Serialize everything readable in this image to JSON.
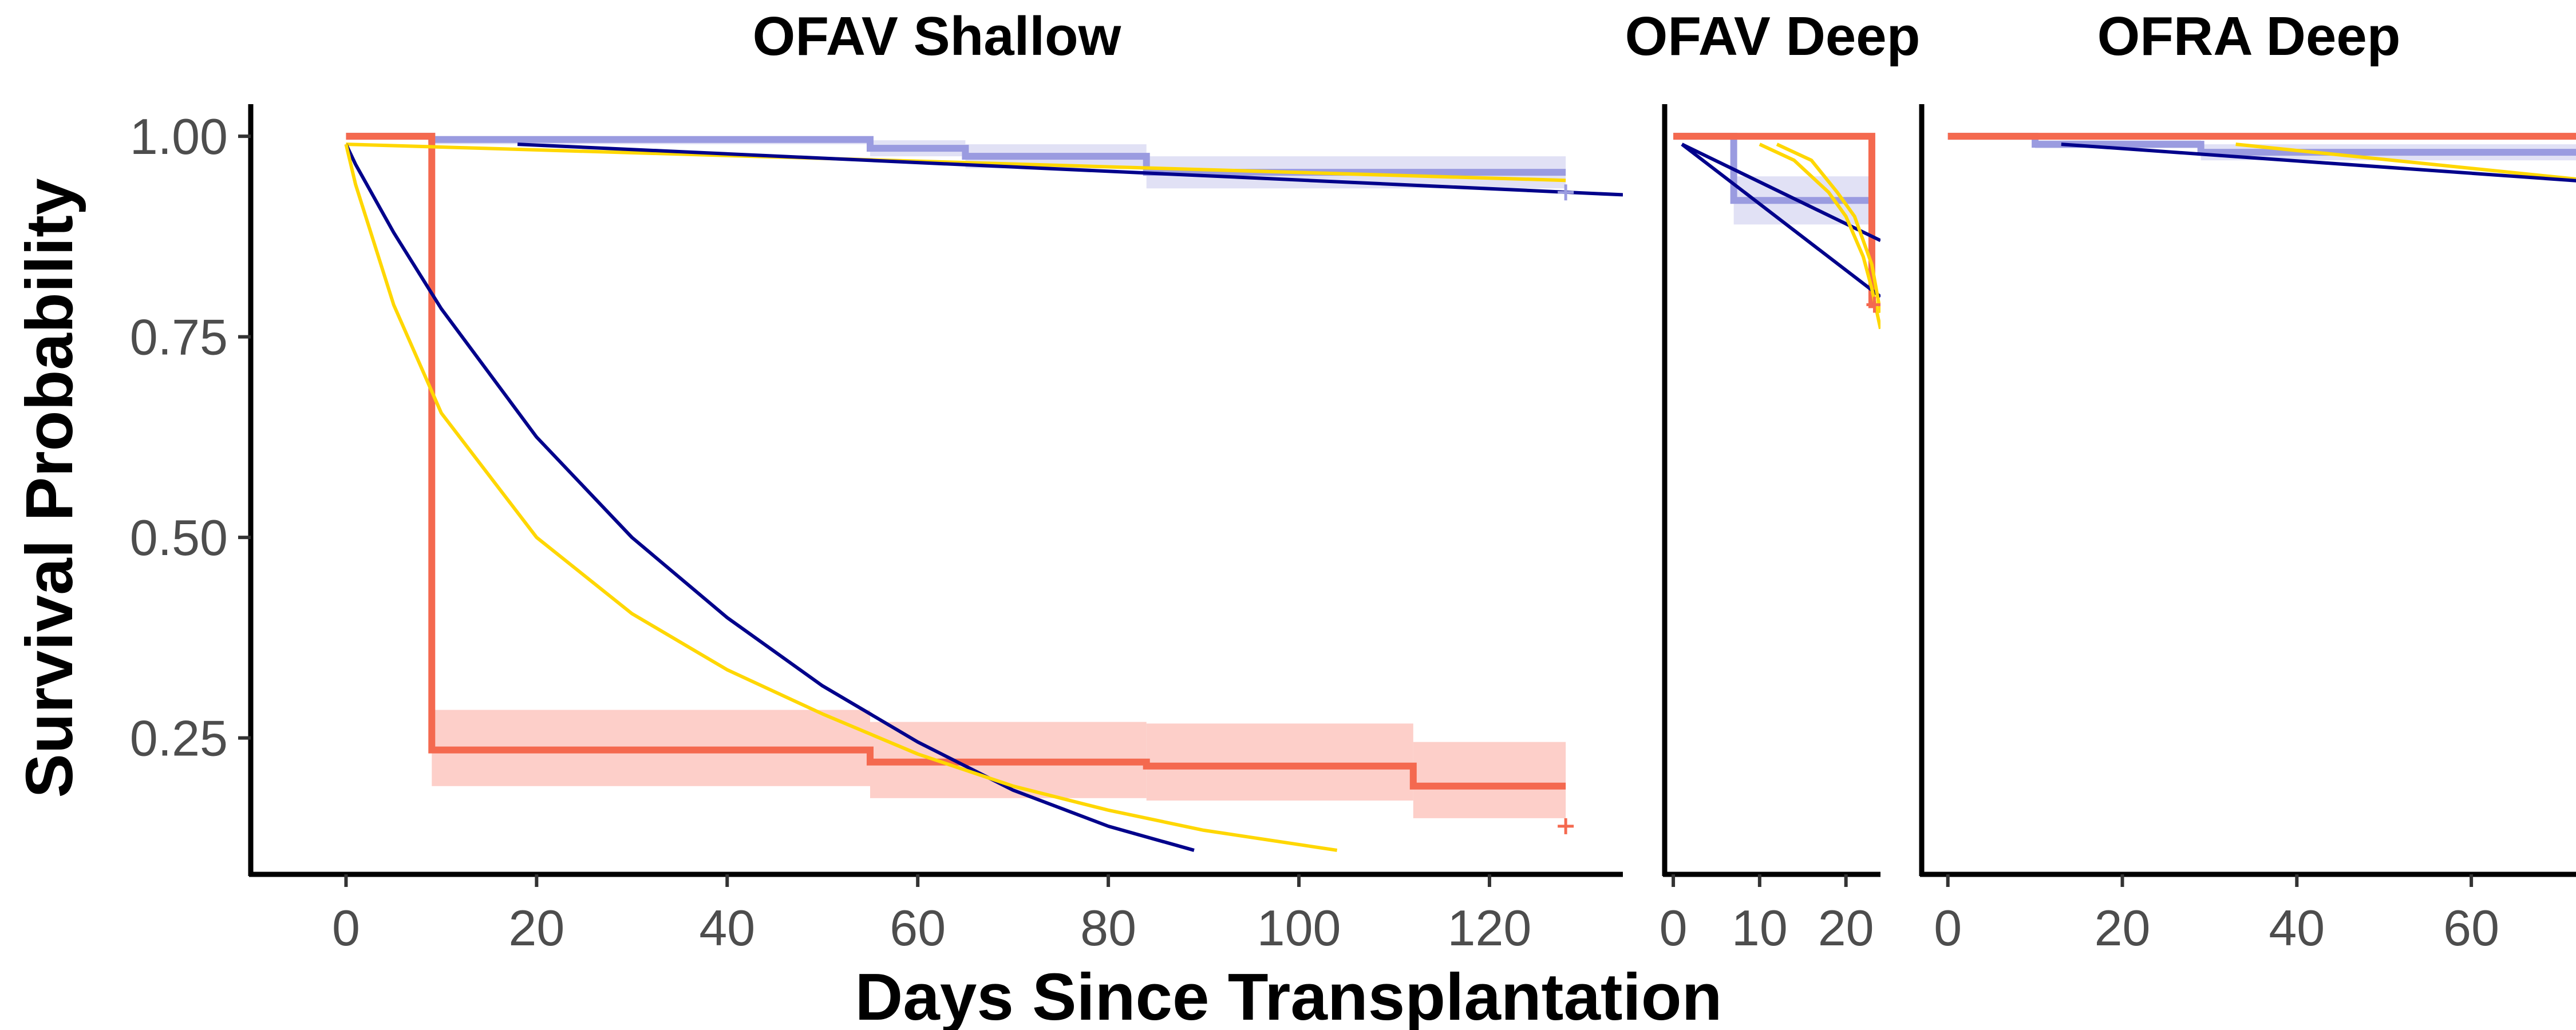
{
  "figure": {
    "xlabel": "Days Since Transplantation",
    "ylabel": "Survival Probability"
  },
  "colors": {
    "km_red": "#f4694f",
    "km_red_ribbon": "#fdc7c0",
    "km_blue": "#9a9be0",
    "km_blue_ribbon": "#dcdcf3",
    "fit_navy": "#00008b",
    "fit_gold": "#ffd700",
    "axis": "#000000"
  },
  "chart_data": [
    {
      "type": "line",
      "title": "OFAV Shallow",
      "xlim": [
        -10,
        134
      ],
      "ylim": [
        0.08,
        1.04
      ],
      "xticks": [
        0,
        20,
        40,
        60,
        80,
        100,
        120
      ],
      "yticks": [
        0.25,
        0.5,
        0.75,
        1.0
      ],
      "ytick_labels": [
        "0.25",
        "0.50",
        "0.75",
        "1.00"
      ],
      "series": [
        {
          "kind": "step",
          "color_key": "km_blue",
          "x": [
            0,
            9,
            55,
            65,
            84,
            128
          ],
          "y": [
            1.0,
            0.996,
            0.985,
            0.975,
            0.955,
            0.955
          ],
          "lower": [
            1.0,
            0.99,
            0.975,
            0.96,
            0.935,
            0.935
          ],
          "upper": [
            1.0,
            1.0,
            0.995,
            0.99,
            0.975,
            0.975
          ],
          "censor_x": [
            128
          ],
          "censor_y": [
            0.93
          ]
        },
        {
          "kind": "step",
          "color_key": "km_red",
          "x": [
            0,
            9,
            55,
            84,
            112,
            128
          ],
          "y": [
            1.0,
            0.235,
            0.22,
            0.215,
            0.19,
            0.19
          ],
          "lower": [
            1.0,
            0.19,
            0.175,
            0.172,
            0.15,
            0.15
          ],
          "upper": [
            1.0,
            0.285,
            0.27,
            0.268,
            0.245,
            0.245
          ],
          "censor_x": [
            128
          ],
          "censor_y": [
            0.14
          ]
        },
        {
          "kind": "curve",
          "color_key": "fit_gold",
          "x": [
            0,
            128
          ],
          "y": [
            0.99,
            0.945
          ]
        },
        {
          "kind": "curve",
          "color_key": "fit_navy",
          "x": [
            18,
            134
          ],
          "y": [
            0.99,
            0.927
          ]
        },
        {
          "kind": "curve",
          "color_key": "fit_navy",
          "x": [
            0,
            1,
            5,
            10,
            20,
            30,
            40,
            50,
            60,
            70,
            80,
            89
          ],
          "y": [
            0.99,
            0.965,
            0.88,
            0.785,
            0.625,
            0.5,
            0.4,
            0.315,
            0.245,
            0.185,
            0.14,
            0.11
          ]
        },
        {
          "kind": "curve",
          "color_key": "fit_gold",
          "x": [
            0,
            1,
            5,
            10,
            20,
            30,
            40,
            50,
            60,
            70,
            80,
            90,
            104
          ],
          "y": [
            0.99,
            0.94,
            0.79,
            0.655,
            0.5,
            0.405,
            0.335,
            0.28,
            0.23,
            0.19,
            0.16,
            0.135,
            0.11
          ]
        }
      ]
    },
    {
      "type": "line",
      "title": "OFAV Deep",
      "xlim": [
        -1,
        24
      ],
      "ylim": [
        0.08,
        1.04
      ],
      "xticks": [
        0,
        10,
        20
      ],
      "yticks": [
        0.25,
        0.5,
        0.75,
        1.0
      ],
      "series": [
        {
          "kind": "step",
          "color_key": "km_blue",
          "x": [
            0,
            7,
            23
          ],
          "y": [
            1.0,
            0.92,
            0.92
          ],
          "lower": [
            1.0,
            0.89,
            0.89
          ],
          "upper": [
            1.0,
            0.95,
            0.95
          ],
          "censor_x": [],
          "censor_y": []
        },
        {
          "kind": "step",
          "color_key": "km_red",
          "x": [
            0,
            23,
            23.3
          ],
          "y": [
            1.0,
            0.79,
            0.79
          ],
          "censor_x": [
            23.3
          ],
          "censor_y": [
            0.79
          ]
        },
        {
          "kind": "curve",
          "color_key": "fit_navy",
          "x": [
            1,
            24
          ],
          "y": [
            0.99,
            0.87
          ]
        },
        {
          "kind": "curve",
          "color_key": "fit_navy",
          "x": [
            1,
            24
          ],
          "y": [
            0.99,
            0.8
          ]
        },
        {
          "kind": "curve",
          "color_key": "fit_gold",
          "x": [
            10,
            14,
            18,
            20,
            22,
            23,
            24
          ],
          "y": [
            0.99,
            0.97,
            0.93,
            0.9,
            0.85,
            0.81,
            0.76
          ]
        },
        {
          "kind": "curve",
          "color_key": "fit_gold",
          "x": [
            12,
            16,
            19,
            21,
            23,
            24
          ],
          "y": [
            0.99,
            0.97,
            0.93,
            0.9,
            0.84,
            0.78
          ]
        }
      ]
    },
    {
      "type": "line",
      "title": "OFRA Deep",
      "xlim": [
        -3,
        72
      ],
      "ylim": [
        0.08,
        1.04
      ],
      "xticks": [
        0,
        20,
        40,
        60
      ],
      "yticks": [
        0.25,
        0.5,
        0.75,
        1.0
      ],
      "series": [
        {
          "kind": "step",
          "color_key": "km_blue",
          "x": [
            0,
            10,
            29,
            73
          ],
          "y": [
            1.0,
            0.99,
            0.98,
            0.98
          ],
          "lower": [
            1.0,
            0.985,
            0.97,
            0.97
          ],
          "upper": [
            1.0,
            0.995,
            0.99,
            0.99
          ],
          "censor_x": [],
          "censor_y": []
        },
        {
          "kind": "step",
          "color_key": "km_red",
          "x": [
            0,
            73
          ],
          "y": [
            1.0,
            1.0
          ],
          "censor_x": [
            73
          ],
          "censor_y": [
            1.0
          ]
        },
        {
          "kind": "curve",
          "color_key": "fit_gold",
          "x": [
            33,
            78
          ],
          "y": [
            0.99,
            0.94
          ]
        },
        {
          "kind": "curve",
          "color_key": "fit_navy",
          "x": [
            13,
            78
          ],
          "y": [
            0.99,
            0.94
          ]
        }
      ]
    }
  ]
}
